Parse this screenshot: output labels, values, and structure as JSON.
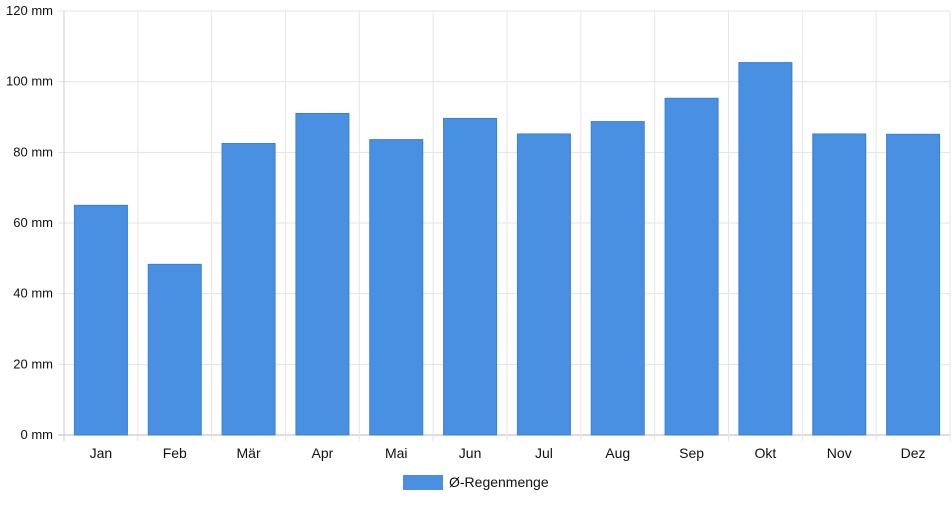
{
  "chart_data": {
    "type": "bar",
    "categories": [
      "Jan",
      "Feb",
      "Mär",
      "Apr",
      "Mai",
      "Jun",
      "Jul",
      "Aug",
      "Sep",
      "Okt",
      "Nov",
      "Dez"
    ],
    "series": [
      {
        "name": "Ø-Regenmenge",
        "values": [
          65,
          48.3,
          82.5,
          91,
          83.6,
          89.6,
          85.2,
          88.7,
          95.3,
          105.4,
          85.2,
          85.1
        ],
        "color": "#4a90e2"
      }
    ],
    "title": "",
    "xlabel": "",
    "ylabel": "",
    "y_unit": "mm",
    "ylim": [
      0,
      120
    ],
    "y_ticks": [
      0,
      20,
      40,
      60,
      80,
      100,
      120
    ],
    "grid": true,
    "legend": "bottom-center"
  }
}
